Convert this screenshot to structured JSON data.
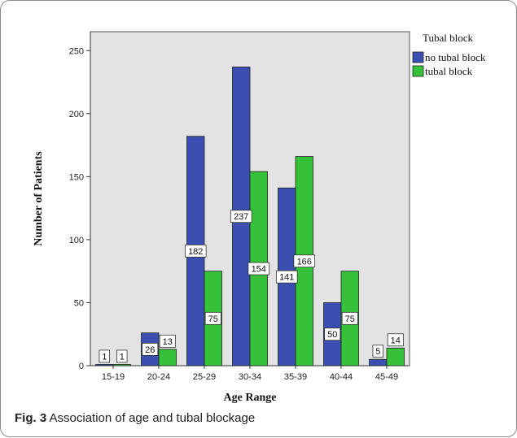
{
  "chart_data": {
    "type": "bar",
    "title": "",
    "xlabel": "Age Range",
    "ylabel": "Number of Patients",
    "categories": [
      "15-19",
      "20-24",
      "25-29",
      "30-34",
      "35-39",
      "40-44",
      "45-49"
    ],
    "series": [
      {
        "name": "no tubal block",
        "values": [
          1,
          26,
          182,
          237,
          141,
          50,
          5
        ],
        "color": "#3a4fb0"
      },
      {
        "name": "tubal block",
        "values": [
          1,
          13,
          75,
          154,
          166,
          75,
          14
        ],
        "color": "#35c13a"
      }
    ],
    "ylim": [
      0,
      265
    ],
    "yticks": [
      0,
      50,
      100,
      150,
      200,
      250
    ],
    "legend": {
      "title": "Tubal block",
      "placement": "right"
    },
    "grid": false,
    "plot_background": "#e3e3e3"
  },
  "caption": {
    "label": "Fig. 3",
    "text": "Association of age and tubal blockage"
  }
}
